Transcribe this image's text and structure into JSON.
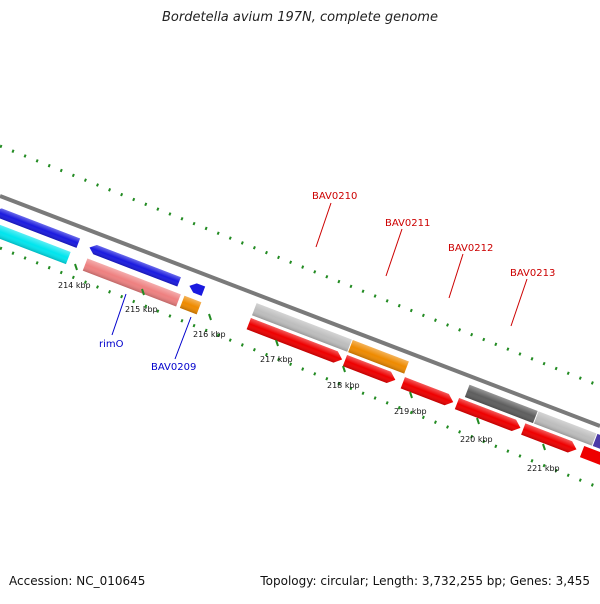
{
  "title": "Bordetella avium 197N, complete genome",
  "footer": {
    "accession": "Accession: NC_010645",
    "summary": "Topology: circular; Length: 3,732,255 bp; Genes: 3,455"
  },
  "ticks": [
    "214 kbp",
    "215 kbp",
    "216 kbp",
    "217 kbp",
    "218 kbp",
    "219 kbp",
    "220 kbp",
    "221 kbp"
  ],
  "labels": {
    "bav0210": "BAV0210",
    "bav0211": "BAV0211",
    "bav0212": "BAV0212",
    "bav0213": "BAV0213",
    "rimO": "rimO",
    "bav0209": "BAV0209"
  },
  "colors": {
    "backbone": "#7a7a7a",
    "dots": "#228B22",
    "label_red": "#cc0000",
    "label_blue": "#0000cc",
    "blue": "#1a1adf",
    "cyan": "#00e5ee",
    "pink": "#ee8080",
    "orange": "#ee8a00",
    "gray_light": "#bdbdbd",
    "gray_dark": "#5e5e5e",
    "red": "#ee0000",
    "purple": "#4b3aa8"
  }
}
